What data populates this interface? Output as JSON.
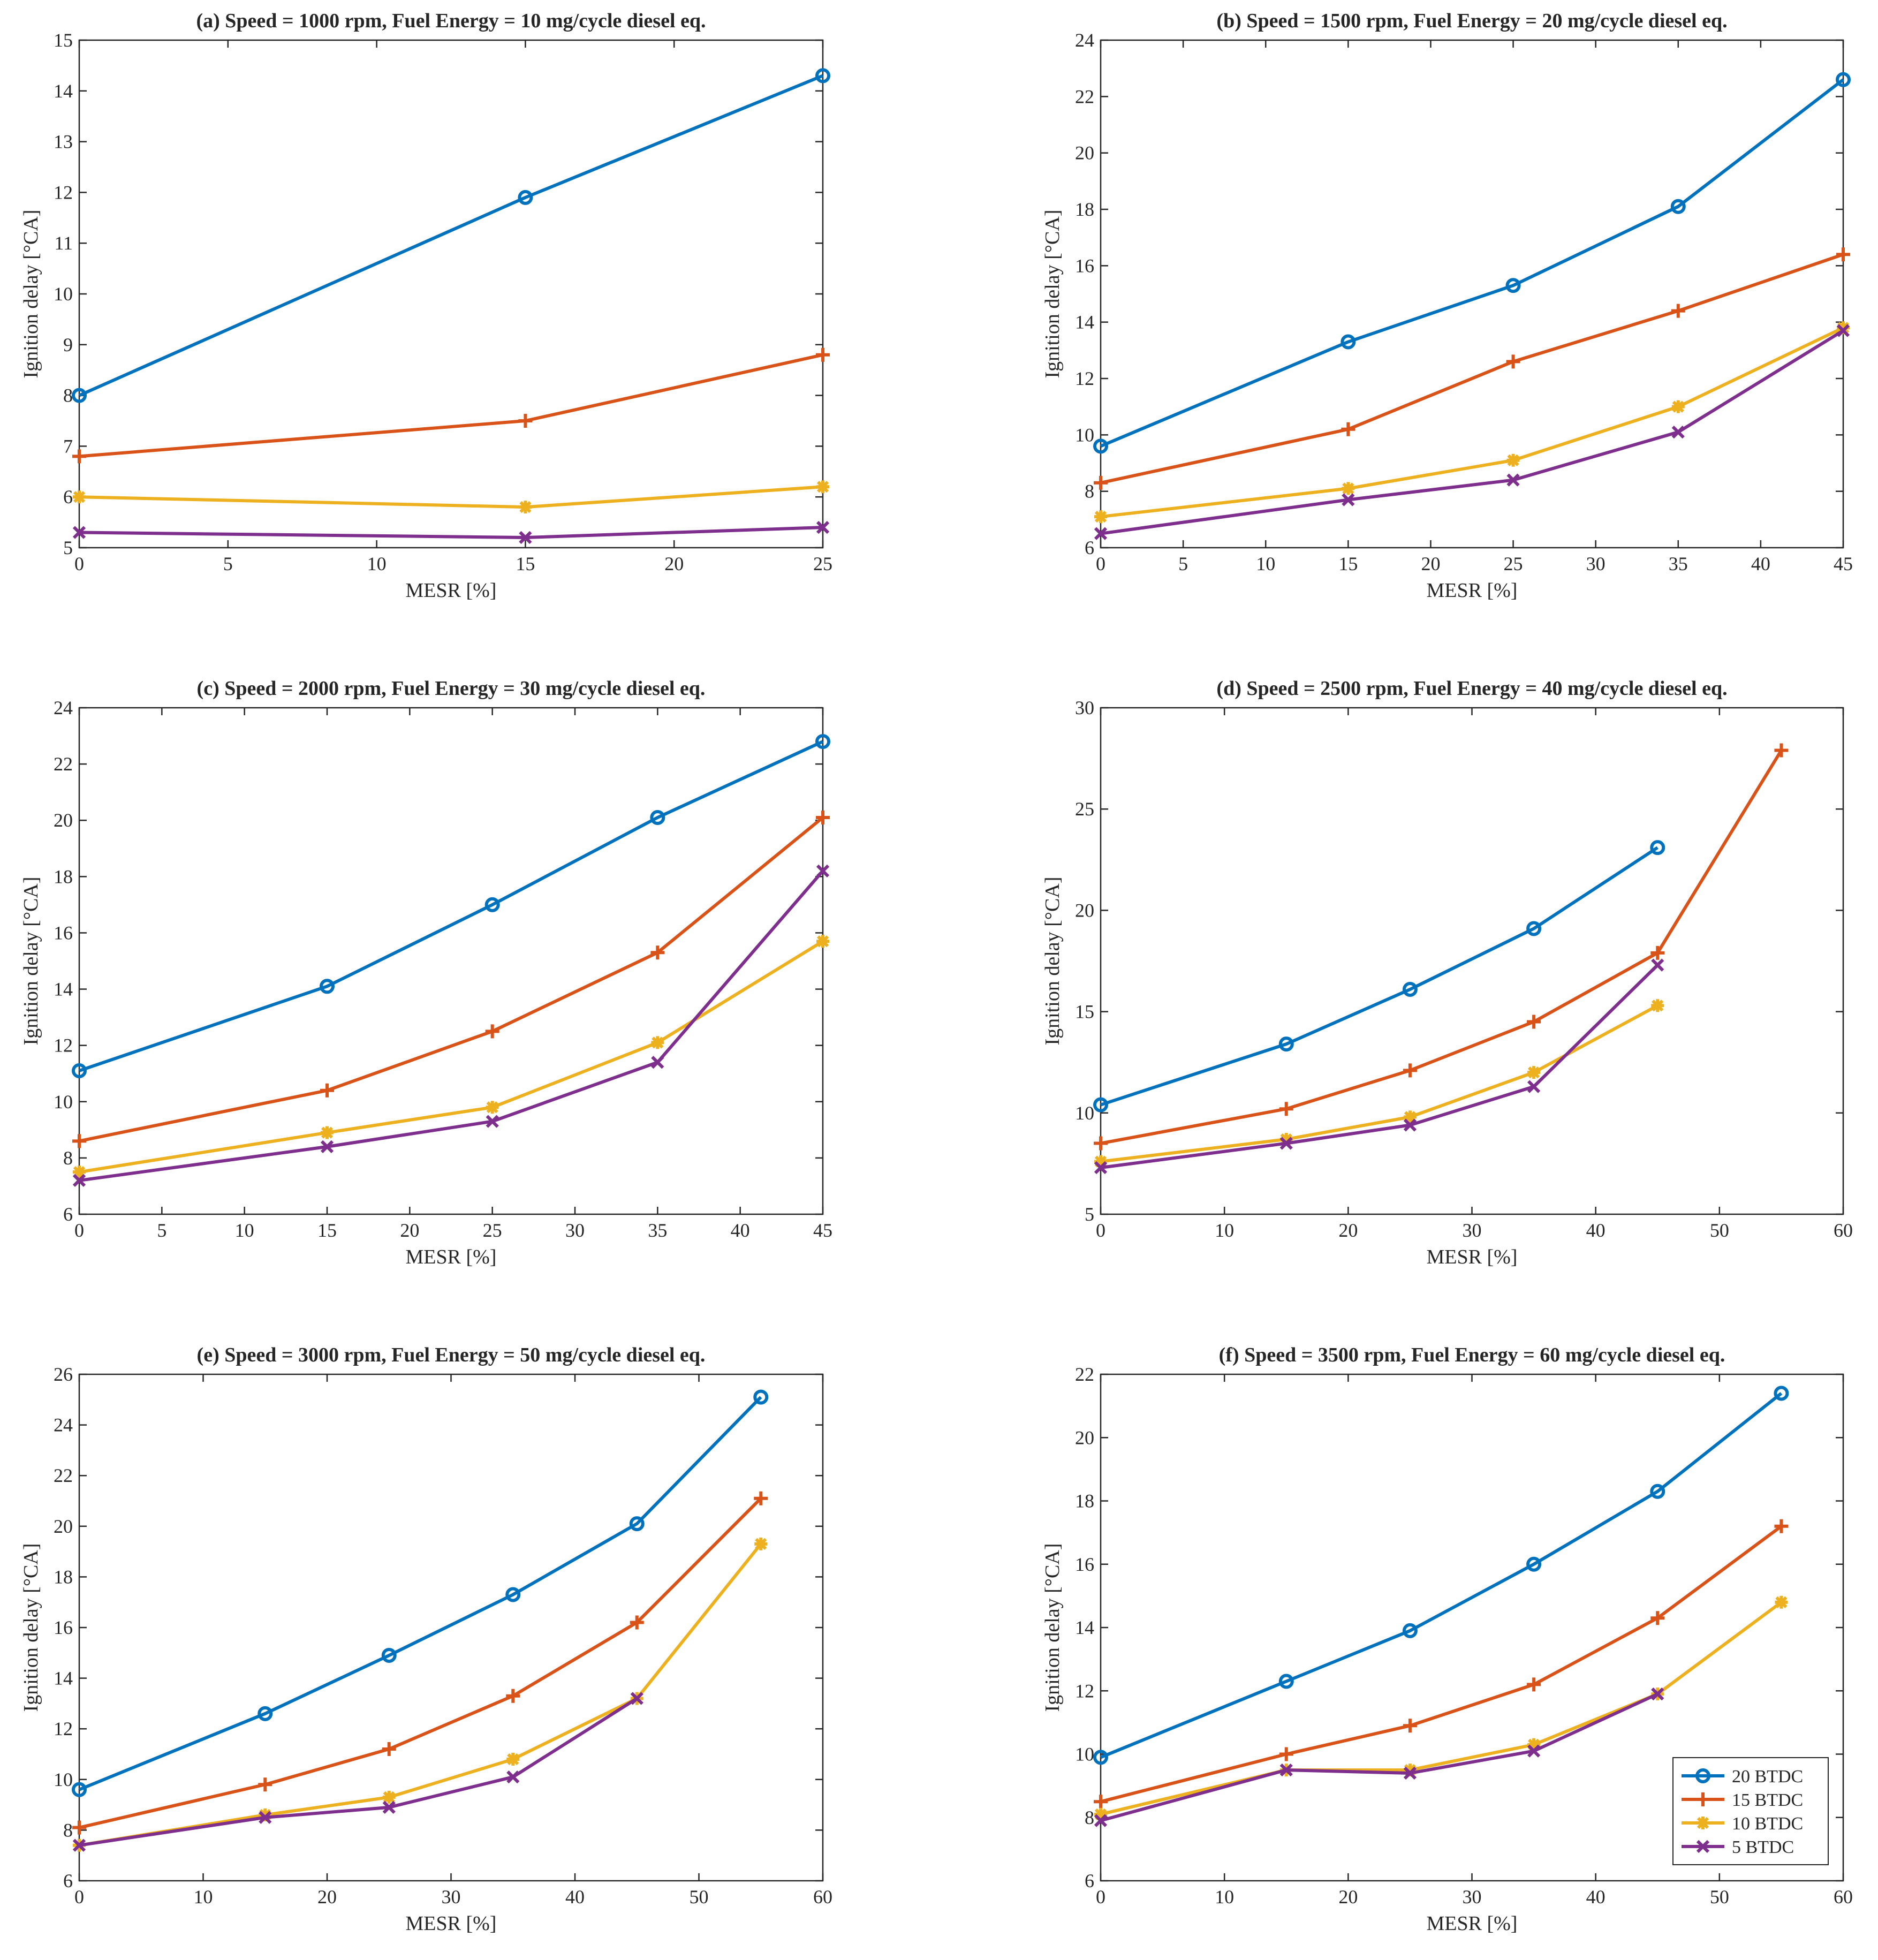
{
  "figure": {
    "series_styles": [
      {
        "name": "20 BTDC",
        "color": "#0072BD",
        "marker": "circle"
      },
      {
        "name": "15 BTDC",
        "color": "#D95319",
        "marker": "plus"
      },
      {
        "name": "10 BTDC",
        "color": "#EDB120",
        "marker": "asterisk"
      },
      {
        "name": "5 BTDC",
        "color": "#7E2F8E",
        "marker": "x"
      }
    ],
    "legend": {
      "location": "bottom-right of panel (f)",
      "entries": [
        "20 BTDC",
        "15 BTDC",
        "10 BTDC",
        "5 BTDC"
      ]
    }
  },
  "chart_data": [
    {
      "type": "line",
      "title": "(a) Speed = 1000 rpm, Fuel Energy = 10 mg/cycle diesel eq.",
      "xlabel": "MESR [%]",
      "ylabel": "Ignition delay [°CA]",
      "xlim": [
        0,
        25
      ],
      "ylim": [
        5,
        15
      ],
      "xticks": [
        0,
        5,
        10,
        15,
        20,
        25
      ],
      "yticks": [
        5,
        6,
        7,
        8,
        9,
        10,
        11,
        12,
        13,
        14,
        15
      ],
      "series": [
        {
          "name": "20 BTDC",
          "x": [
            0,
            15,
            25
          ],
          "y": [
            8.0,
            11.9,
            14.3
          ]
        },
        {
          "name": "15 BTDC",
          "x": [
            0,
            15,
            25
          ],
          "y": [
            6.8,
            7.5,
            8.8
          ]
        },
        {
          "name": "10 BTDC",
          "x": [
            0,
            15,
            25
          ],
          "y": [
            6.0,
            5.8,
            6.2
          ]
        },
        {
          "name": "5 BTDC",
          "x": [
            0,
            15,
            25
          ],
          "y": [
            5.3,
            5.2,
            5.4
          ]
        }
      ]
    },
    {
      "type": "line",
      "title": "(b) Speed = 1500 rpm, Fuel Energy = 20 mg/cycle diesel eq.",
      "xlabel": "MESR [%]",
      "ylabel": "Ignition delay [°CA]",
      "xlim": [
        0,
        45
      ],
      "ylim": [
        6,
        24
      ],
      "xticks": [
        0,
        5,
        10,
        15,
        20,
        25,
        30,
        35,
        40,
        45
      ],
      "yticks": [
        6,
        8,
        10,
        12,
        14,
        16,
        18,
        20,
        22,
        24
      ],
      "series": [
        {
          "name": "20 BTDC",
          "x": [
            0,
            15,
            25,
            35,
            45
          ],
          "y": [
            9.6,
            13.3,
            15.3,
            18.1,
            22.6
          ]
        },
        {
          "name": "15 BTDC",
          "x": [
            0,
            15,
            25,
            35,
            45
          ],
          "y": [
            8.3,
            10.2,
            12.6,
            14.4,
            16.4
          ]
        },
        {
          "name": "10 BTDC",
          "x": [
            0,
            15,
            25,
            35,
            45
          ],
          "y": [
            7.1,
            8.1,
            9.1,
            11.0,
            13.8
          ]
        },
        {
          "name": "5 BTDC",
          "x": [
            0,
            15,
            25,
            35,
            45
          ],
          "y": [
            6.5,
            7.7,
            8.4,
            10.1,
            13.7
          ]
        }
      ]
    },
    {
      "type": "line",
      "title": "(c) Speed = 2000 rpm, Fuel Energy = 30 mg/cycle diesel eq.",
      "xlabel": "MESR [%]",
      "ylabel": "Ignition delay [°CA]",
      "xlim": [
        0,
        45
      ],
      "ylim": [
        6,
        24
      ],
      "xticks": [
        0,
        5,
        10,
        15,
        20,
        25,
        30,
        35,
        40,
        45
      ],
      "yticks": [
        6,
        8,
        10,
        12,
        14,
        16,
        18,
        20,
        22,
        24
      ],
      "series": [
        {
          "name": "20 BTDC",
          "x": [
            0,
            15,
            25,
            35,
            45
          ],
          "y": [
            11.1,
            14.1,
            17.0,
            20.1,
            22.8
          ]
        },
        {
          "name": "15 BTDC",
          "x": [
            0,
            15,
            25,
            35,
            45
          ],
          "y": [
            8.6,
            10.4,
            12.5,
            15.3,
            20.1
          ]
        },
        {
          "name": "10 BTDC",
          "x": [
            0,
            15,
            25,
            35,
            45
          ],
          "y": [
            7.5,
            8.9,
            9.8,
            12.1,
            15.7
          ]
        },
        {
          "name": "5 BTDC",
          "x": [
            0,
            15,
            25,
            35,
            45
          ],
          "y": [
            7.2,
            8.4,
            9.3,
            11.4,
            18.2
          ]
        }
      ]
    },
    {
      "type": "line",
      "title": "(d) Speed = 2500 rpm, Fuel Energy = 40 mg/cycle diesel eq.",
      "xlabel": "MESR [%]",
      "ylabel": "Ignition delay [°CA]",
      "xlim": [
        0,
        60
      ],
      "ylim": [
        5,
        30
      ],
      "xticks": [
        0,
        10,
        20,
        30,
        40,
        50,
        60
      ],
      "yticks": [
        5,
        10,
        15,
        20,
        25,
        30
      ],
      "series": [
        {
          "name": "20 BTDC",
          "x": [
            0,
            15,
            25,
            35,
            45
          ],
          "y": [
            10.4,
            13.4,
            16.1,
            19.1,
            23.1
          ]
        },
        {
          "name": "15 BTDC",
          "x": [
            0,
            15,
            25,
            35,
            45,
            55
          ],
          "y": [
            8.5,
            10.2,
            12.1,
            14.5,
            17.9,
            27.9
          ]
        },
        {
          "name": "10 BTDC",
          "x": [
            0,
            15,
            25,
            35,
            45
          ],
          "y": [
            7.6,
            8.7,
            9.8,
            12.0,
            15.3
          ]
        },
        {
          "name": "5 BTDC",
          "x": [
            0,
            15,
            25,
            35,
            45
          ],
          "y": [
            7.3,
            8.5,
            9.4,
            11.3,
            17.3
          ]
        }
      ]
    },
    {
      "type": "line",
      "title": "(e) Speed = 3000 rpm, Fuel Energy = 50 mg/cycle diesel eq.",
      "xlabel": "MESR [%]",
      "ylabel": "Ignition delay [°CA]",
      "xlim": [
        0,
        60
      ],
      "ylim": [
        6,
        26
      ],
      "xticks": [
        0,
        10,
        20,
        30,
        40,
        50,
        60
      ],
      "yticks": [
        6,
        8,
        10,
        12,
        14,
        16,
        18,
        20,
        22,
        24,
        26
      ],
      "series": [
        {
          "name": "20 BTDC",
          "x": [
            0,
            15,
            25,
            35,
            45,
            55
          ],
          "y": [
            9.6,
            12.6,
            14.9,
            17.3,
            20.1,
            25.1
          ]
        },
        {
          "name": "15 BTDC",
          "x": [
            0,
            15,
            25,
            35,
            45,
            55
          ],
          "y": [
            8.1,
            9.8,
            11.2,
            13.3,
            16.2,
            21.1
          ]
        },
        {
          "name": "10 BTDC",
          "x": [
            0,
            15,
            25,
            35,
            45,
            55
          ],
          "y": [
            7.4,
            8.6,
            9.3,
            10.8,
            13.2,
            19.3
          ]
        },
        {
          "name": "5 BTDC",
          "x": [
            0,
            15,
            25,
            35,
            45
          ],
          "y": [
            7.4,
            8.5,
            8.9,
            10.1,
            13.2
          ]
        }
      ]
    },
    {
      "type": "line",
      "title": "(f) Speed = 3500 rpm, Fuel Energy = 60 mg/cycle diesel eq.",
      "xlabel": "MESR [%]",
      "ylabel": "Ignition delay [°CA]",
      "xlim": [
        0,
        60
      ],
      "ylim": [
        6,
        22
      ],
      "xticks": [
        0,
        10,
        20,
        30,
        40,
        50,
        60
      ],
      "yticks": [
        6,
        8,
        10,
        12,
        14,
        16,
        18,
        20,
        22
      ],
      "series": [
        {
          "name": "20 BTDC",
          "x": [
            0,
            15,
            25,
            35,
            45,
            55
          ],
          "y": [
            9.9,
            12.3,
            13.9,
            16.0,
            18.3,
            21.4
          ]
        },
        {
          "name": "15 BTDC",
          "x": [
            0,
            15,
            25,
            35,
            45,
            55
          ],
          "y": [
            8.5,
            10.0,
            10.9,
            12.2,
            14.3,
            17.2
          ]
        },
        {
          "name": "10 BTDC",
          "x": [
            0,
            15,
            25,
            35,
            45,
            55
          ],
          "y": [
            8.1,
            9.5,
            9.5,
            10.3,
            11.9,
            14.8
          ]
        },
        {
          "name": "5 BTDC",
          "x": [
            0,
            15,
            25,
            35,
            45
          ],
          "y": [
            7.9,
            9.5,
            9.4,
            10.1,
            11.9
          ]
        }
      ]
    }
  ]
}
